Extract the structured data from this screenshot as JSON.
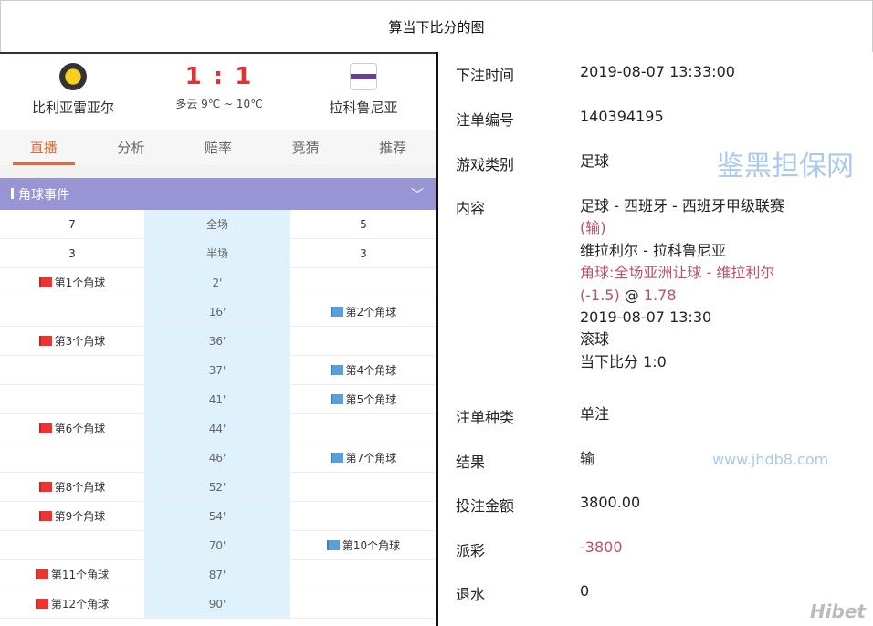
{
  "title": "算当下比分的图",
  "match": {
    "home": "比利亚雷亚尔",
    "away": "拉科鲁尼亚",
    "score": "1 : 1",
    "weather": "多云  9℃ ~ 10℃"
  },
  "tabs": [
    "直播",
    "分析",
    "赔率",
    "竞猜",
    "推荐"
  ],
  "section": {
    "title": "角球事件",
    "chevron": "﹀"
  },
  "stats": [
    {
      "home": "7",
      "label": "全场",
      "away": "5"
    },
    {
      "home": "3",
      "label": "半场",
      "away": "3"
    }
  ],
  "corners": [
    {
      "side": "home",
      "text": "第1个角球",
      "minute": "2'"
    },
    {
      "side": "away",
      "text": "第2个角球",
      "minute": "16'"
    },
    {
      "side": "home",
      "text": "第3个角球",
      "minute": "36'"
    },
    {
      "side": "away",
      "text": "第4个角球",
      "minute": "37'"
    },
    {
      "side": "away",
      "text": "第5个角球",
      "minute": "41'"
    },
    {
      "side": "home",
      "text": "第6个角球",
      "minute": "44'"
    },
    {
      "side": "away",
      "text": "第7个角球",
      "minute": "46'"
    },
    {
      "side": "home",
      "text": "第8个角球",
      "minute": "52'"
    },
    {
      "side": "home",
      "text": "第9个角球",
      "minute": "54'"
    },
    {
      "side": "away",
      "text": "第10个角球",
      "minute": "70'"
    },
    {
      "side": "home",
      "text": "第11个角球",
      "minute": "87'"
    },
    {
      "side": "home",
      "text": "第12个角球",
      "minute": "90'"
    }
  ],
  "bet": {
    "time_label": "下注时间",
    "time": "2019-08-07 13:33:00",
    "id_label": "注单编号",
    "id": "140394195",
    "game_label": "游戏类别",
    "game": "足球",
    "content_label": "内容",
    "content": {
      "league": "足球 - 西班牙 - 西班牙甲级联赛",
      "result_tag": "(输)",
      "teams": "维拉利尔 - 拉科鲁尼亚",
      "market": "角球:全场亚洲让球 - 维拉利尔",
      "line": "(-1.5)",
      "at": " @ ",
      "odds": "1.78",
      "kickoff": "2019-08-07 13:30",
      "mode": "滚球",
      "current_score": "当下比分 1:0"
    },
    "type_label": "注单种类",
    "type": "单注",
    "result_label": "结果",
    "result": "输",
    "stake_label": "投注金额",
    "stake": "3800.00",
    "payout_label": "派彩",
    "payout": "-3800",
    "rebate_label": "退水",
    "rebate": "0"
  },
  "watermark": {
    "text": "鉴黑担保网",
    "url": "www.jhdb8.com",
    "corner": "Hibet"
  },
  "colors": {
    "accent": "#e06a3a",
    "score": "#dd3333",
    "section": "#9795d3",
    "loss": "#c0506a"
  }
}
